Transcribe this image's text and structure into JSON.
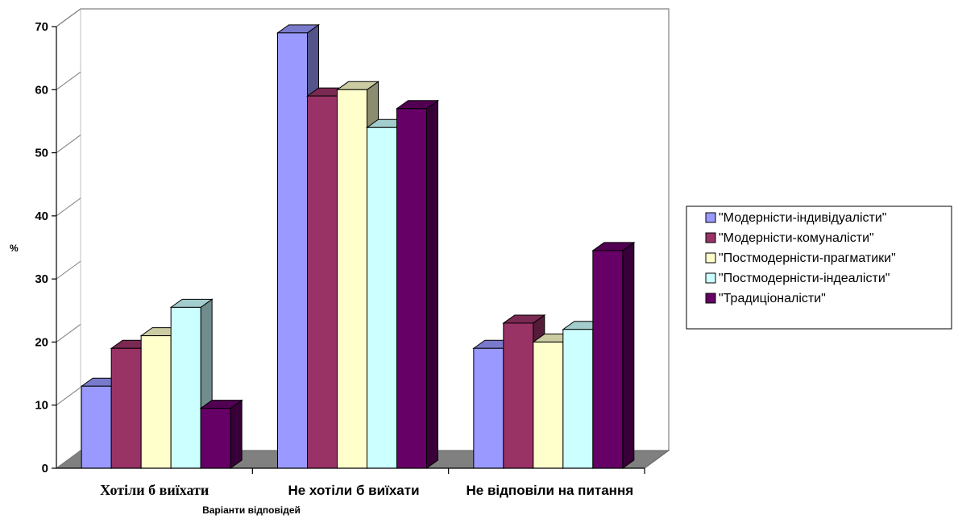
{
  "chart_data": {
    "type": "bar",
    "title": "",
    "xlabel": "Варіанти відповідей",
    "ylabel": "%",
    "ylim": [
      0,
      70
    ],
    "yticks": [
      0,
      10,
      20,
      30,
      40,
      50,
      60,
      70
    ],
    "categories": [
      "Хотіли б виїхати",
      "Не хотіли б виїхати",
      "Не відповіли на питання"
    ],
    "series": [
      {
        "name": "\"Модерністи-індивідуалісти\"",
        "color": "#9999ff",
        "values": [
          13,
          69,
          19
        ]
      },
      {
        "name": "\"Модерністи-комуналісти\"",
        "color": "#993366",
        "values": [
          19,
          59,
          23
        ]
      },
      {
        "name": "\"Постмодерністи-прагматики\"",
        "color": "#ffffcc",
        "values": [
          21,
          60,
          20
        ]
      },
      {
        "name": "\"Постмодерністи-індеалісти\"",
        "color": "#ccffff",
        "values": [
          25.5,
          54,
          22
        ]
      },
      {
        "name": "\"Традиціоналісти\"",
        "color": "#660066",
        "values": [
          9.5,
          57,
          34.5
        ]
      }
    ],
    "grid": false,
    "legend": "right"
  }
}
